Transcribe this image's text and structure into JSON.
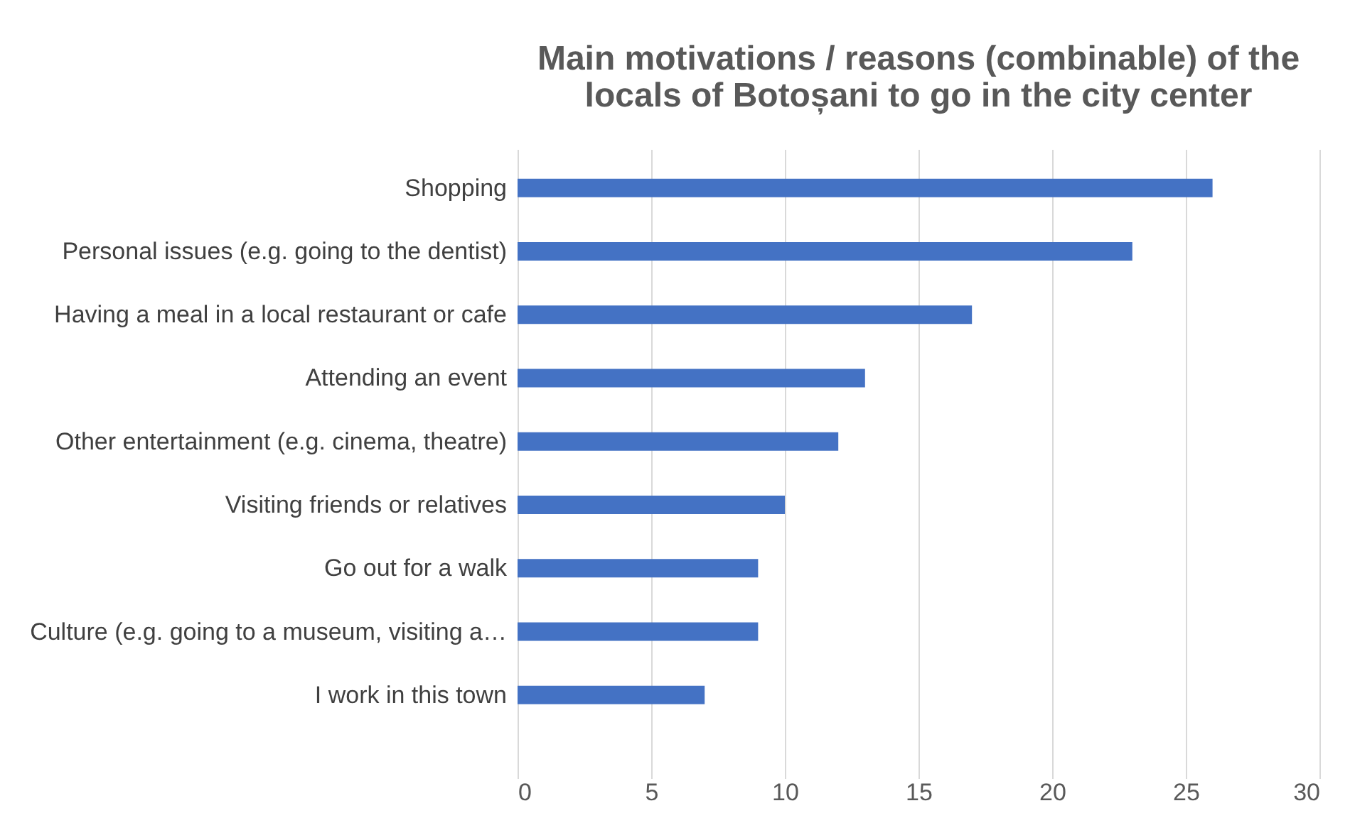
{
  "chart_data": {
    "type": "bar",
    "orientation": "horizontal",
    "title": [
      "Main motivations / reasons (combinable) of the",
      "locals of Botoșani to go in the city center"
    ],
    "categories": [
      "Shopping",
      "Personal issues (e.g. going to the dentist)",
      "Having a meal in a local restaurant or cafe",
      "Attending an event",
      "Other entertainment (e.g. cinema, theatre)",
      "Visiting friends or relatives",
      "Go out for a walk",
      "Culture (e.g. going to a museum, visiting a…",
      "I work in this town"
    ],
    "values": [
      26,
      23,
      17,
      13,
      12,
      10,
      9,
      9,
      7
    ],
    "color": "#4472c4",
    "xlim": [
      0,
      30
    ],
    "xticks": [
      0,
      5,
      10,
      15,
      20,
      25,
      30
    ],
    "grid": "x"
  }
}
